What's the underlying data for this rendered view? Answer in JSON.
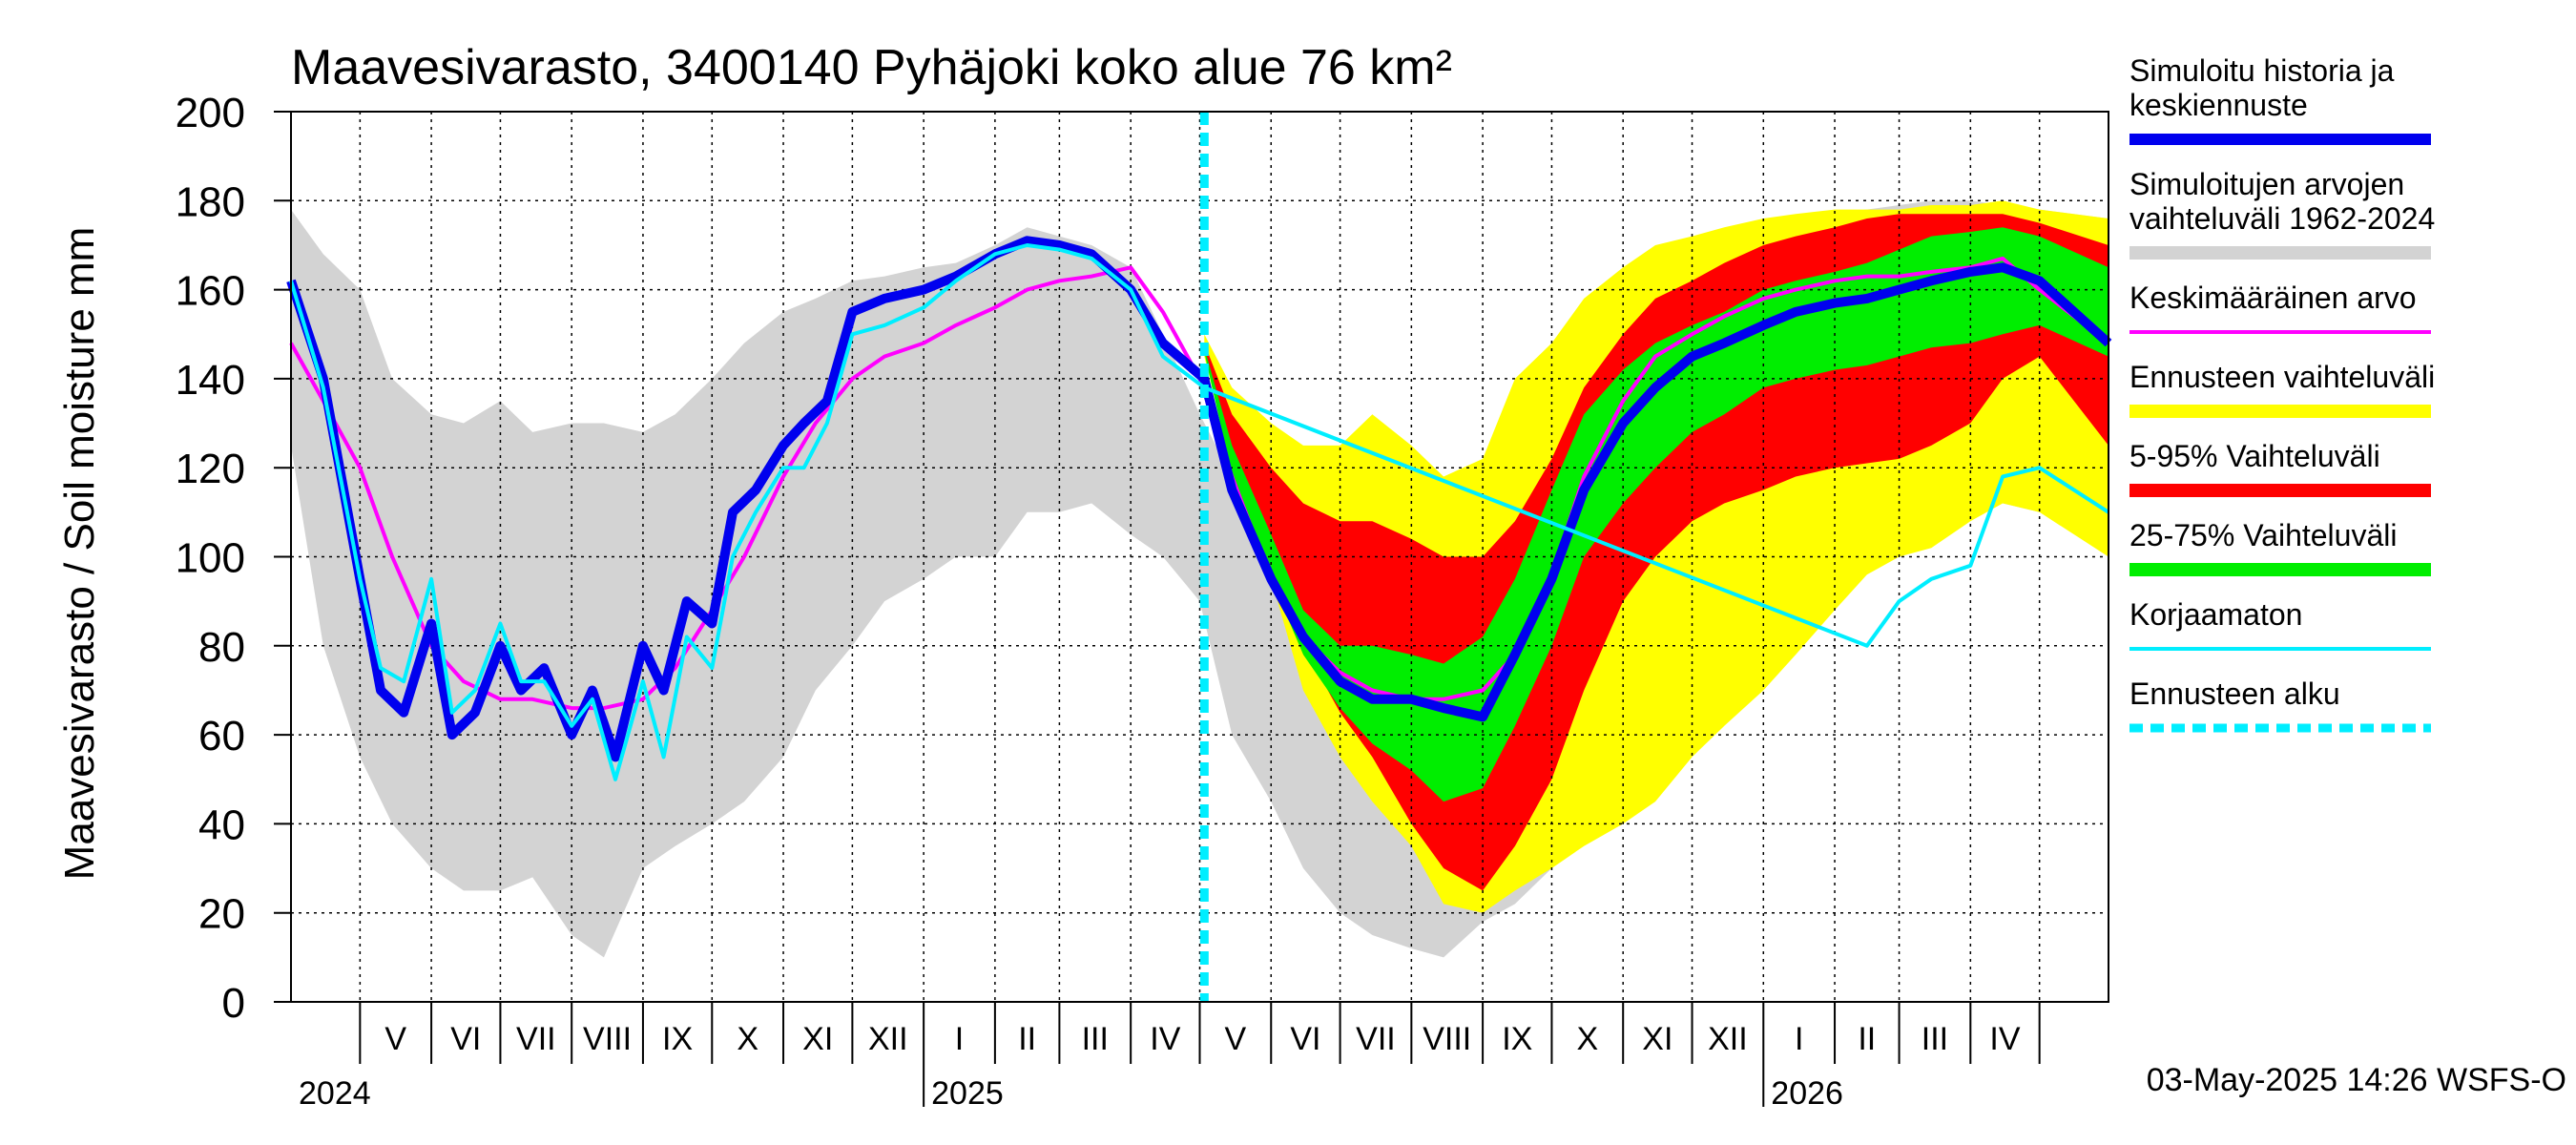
{
  "chart_data": {
    "type": "area",
    "title": "Maavesivarasto, 3400140 Pyhäjoki koko alue 76 km²",
    "ylabel": "Maavesivarasto / Soil moisture   mm",
    "ylim": [
      0,
      200
    ],
    "yticks": [
      "0",
      "20",
      "40",
      "60",
      "80",
      "100",
      "120",
      "140",
      "160",
      "180",
      "200"
    ],
    "x_start": "2024-04-01",
    "x_end": "2026-05-31",
    "forecast_start": "2025-05-03",
    "months": [
      "V",
      "VI",
      "VII",
      "VIII",
      "IX",
      "X",
      "XI",
      "XII",
      "I",
      "II",
      "III",
      "IV",
      "V",
      "VI",
      "VII",
      "VIII",
      "IX",
      "X",
      "XI",
      "XII",
      "I",
      "II",
      "III",
      "IV"
    ],
    "years": [
      "2024",
      "2025",
      "2026"
    ],
    "grid": true,
    "legend_position": "right",
    "legend": [
      {
        "label": "Simuloitu historia ja keskiennuste",
        "color": "#0000ee"
      },
      {
        "label": "Simuloitujen arvojen vaihteluväli 1962-2024",
        "color": "#d3d3d3"
      },
      {
        "label": "Keskimääräinen arvo",
        "color": "#ff00ff"
      },
      {
        "label": "Ennusteen vaihteluväli",
        "color": "#ffff00"
      },
      {
        "label": "5-95% Vaihteluväli",
        "color": "#ff0000"
      },
      {
        "label": "25-75% Vaihteluväli",
        "color": "#00ee00"
      },
      {
        "label": "Korjaamaton",
        "color": "#00eeff"
      },
      {
        "label": "Ennusteen alku",
        "color": "#00eeff"
      }
    ],
    "series": {
      "historical_range": {
        "dates": [
          "2024-04-01",
          "2024-04-15",
          "2024-05-01",
          "2024-05-15",
          "2024-06-01",
          "2024-06-15",
          "2024-07-01",
          "2024-07-15",
          "2024-08-01",
          "2024-08-15",
          "2024-09-01",
          "2024-09-15",
          "2024-10-01",
          "2024-10-15",
          "2024-11-01",
          "2024-11-15",
          "2024-12-01",
          "2024-12-15",
          "2025-01-01",
          "2025-01-15",
          "2025-02-01",
          "2025-02-15",
          "2025-03-01",
          "2025-03-15",
          "2025-04-01",
          "2025-04-15",
          "2025-05-01",
          "2025-05-15",
          "2025-06-01",
          "2025-06-15",
          "2025-07-01",
          "2025-07-15",
          "2025-08-01",
          "2025-08-15",
          "2025-09-01",
          "2025-09-15",
          "2025-10-01",
          "2025-10-15",
          "2025-11-01",
          "2025-11-15",
          "2025-12-01",
          "2025-12-15",
          "2026-01-01",
          "2026-01-15",
          "2026-02-01",
          "2026-02-15",
          "2026-03-01",
          "2026-03-15",
          "2026-04-01",
          "2026-04-15",
          "2026-05-01",
          "2026-05-31"
        ],
        "upper": [
          178,
          168,
          160,
          140,
          132,
          130,
          135,
          128,
          130,
          130,
          128,
          132,
          140,
          148,
          155,
          158,
          162,
          163,
          165,
          166,
          170,
          174,
          172,
          170,
          165,
          150,
          132,
          118,
          112,
          105,
          100,
          98,
          98,
          100,
          105,
          110,
          115,
          125,
          135,
          150,
          160,
          168,
          172,
          175,
          177,
          178,
          179,
          180,
          180,
          179,
          178,
          176
        ],
        "lower": [
          125,
          80,
          55,
          40,
          30,
          25,
          25,
          28,
          15,
          10,
          30,
          35,
          40,
          45,
          55,
          70,
          80,
          90,
          95,
          100,
          100,
          110,
          110,
          112,
          105,
          100,
          90,
          60,
          45,
          30,
          20,
          15,
          12,
          10,
          18,
          22,
          30,
          38,
          45,
          55,
          62,
          70,
          78,
          88,
          98,
          105,
          108,
          110,
          112,
          112,
          110,
          108
        ]
      },
      "forecast_range": {
        "dates": [
          "2025-05-03",
          "2025-05-15",
          "2025-06-01",
          "2025-06-15",
          "2025-07-01",
          "2025-07-15",
          "2025-08-01",
          "2025-08-15",
          "2025-09-01",
          "2025-09-15",
          "2025-10-01",
          "2025-10-15",
          "2025-11-01",
          "2025-11-15",
          "2025-12-01",
          "2025-12-15",
          "2026-01-01",
          "2026-01-15",
          "2026-02-01",
          "2026-02-15",
          "2026-03-01",
          "2026-03-15",
          "2026-04-01",
          "2026-04-15",
          "2026-05-01",
          "2026-05-31"
        ],
        "upper": [
          150,
          138,
          130,
          125,
          125,
          132,
          125,
          118,
          122,
          140,
          148,
          158,
          165,
          170,
          172,
          174,
          176,
          177,
          178,
          178,
          178,
          179,
          179,
          180,
          178,
          176
        ],
        "lower": [
          145,
          120,
          95,
          70,
          55,
          45,
          35,
          22,
          20,
          25,
          30,
          35,
          40,
          45,
          55,
          62,
          70,
          78,
          88,
          96,
          100,
          102,
          108,
          112,
          110,
          100
        ]
      },
      "p5_95": {
        "dates": [
          "2025-05-03",
          "2025-05-15",
          "2025-06-01",
          "2025-06-15",
          "2025-07-01",
          "2025-07-15",
          "2025-08-01",
          "2025-08-15",
          "2025-09-01",
          "2025-09-15",
          "2025-10-01",
          "2025-10-15",
          "2025-11-01",
          "2025-11-15",
          "2025-12-01",
          "2025-12-15",
          "2026-01-01",
          "2026-01-15",
          "2026-02-01",
          "2026-02-15",
          "2026-03-01",
          "2026-03-15",
          "2026-04-01",
          "2026-04-15",
          "2026-05-01",
          "2026-05-31"
        ],
        "upper": [
          148,
          132,
          120,
          112,
          108,
          108,
          104,
          100,
          100,
          108,
          122,
          138,
          150,
          158,
          162,
          166,
          170,
          172,
          174,
          176,
          177,
          177,
          177,
          177,
          175,
          170
        ],
        "lower": [
          146,
          122,
          100,
          80,
          65,
          55,
          40,
          30,
          25,
          35,
          50,
          70,
          90,
          100,
          108,
          112,
          115,
          118,
          120,
          121,
          122,
          125,
          130,
          140,
          145,
          125
        ]
      },
      "p25_75": {
        "dates": [
          "2025-05-03",
          "2025-05-15",
          "2025-06-01",
          "2025-06-15",
          "2025-07-01",
          "2025-07-15",
          "2025-08-01",
          "2025-08-15",
          "2025-09-01",
          "2025-09-15",
          "2025-10-01",
          "2025-10-15",
          "2025-11-01",
          "2025-11-15",
          "2025-12-01",
          "2025-12-15",
          "2026-01-01",
          "2026-01-15",
          "2026-02-01",
          "2026-02-15",
          "2026-03-01",
          "2026-03-15",
          "2026-04-01",
          "2026-04-15",
          "2026-05-01",
          "2026-05-31"
        ],
        "upper": [
          147,
          125,
          105,
          88,
          80,
          80,
          78,
          76,
          82,
          95,
          115,
          132,
          142,
          148,
          152,
          155,
          160,
          162,
          164,
          166,
          169,
          172,
          173,
          174,
          172,
          165
        ],
        "lower": [
          146,
          118,
          95,
          78,
          66,
          58,
          52,
          45,
          48,
          62,
          80,
          100,
          112,
          120,
          128,
          132,
          138,
          140,
          142,
          143,
          145,
          147,
          148,
          150,
          152,
          145
        ]
      },
      "simulated": {
        "dates": [
          "2024-04-01",
          "2024-04-15",
          "2024-05-01",
          "2024-05-10",
          "2024-05-20",
          "2024-06-01",
          "2024-06-10",
          "2024-06-20",
          "2024-07-01",
          "2024-07-10",
          "2024-07-20",
          "2024-08-01",
          "2024-08-10",
          "2024-08-20",
          "2024-09-01",
          "2024-09-10",
          "2024-09-20",
          "2024-10-01",
          "2024-10-10",
          "2024-10-20",
          "2024-11-01",
          "2024-11-10",
          "2024-11-20",
          "2024-12-01",
          "2024-12-15",
          "2025-01-01",
          "2025-01-15",
          "2025-02-01",
          "2025-02-15",
          "2025-03-01",
          "2025-03-15",
          "2025-04-01",
          "2025-04-15",
          "2025-05-03",
          "2025-05-15",
          "2025-06-01",
          "2025-06-15",
          "2025-07-01",
          "2025-07-15",
          "2025-08-01",
          "2025-08-15",
          "2025-09-01",
          "2025-09-15",
          "2025-10-01",
          "2025-10-15",
          "2025-11-01",
          "2025-11-15",
          "2025-12-01",
          "2025-12-15",
          "2026-01-01",
          "2026-01-15",
          "2026-02-01",
          "2026-02-15",
          "2026-03-01",
          "2026-03-15",
          "2026-04-01",
          "2026-04-15",
          "2026-05-01",
          "2026-05-31"
        ],
        "values": [
          162,
          140,
          95,
          70,
          65,
          85,
          60,
          65,
          80,
          70,
          75,
          60,
          70,
          55,
          80,
          70,
          90,
          85,
          110,
          115,
          125,
          130,
          135,
          155,
          158,
          160,
          163,
          168,
          171,
          170,
          168,
          160,
          148,
          140,
          115,
          95,
          82,
          72,
          68,
          68,
          66,
          64,
          78,
          95,
          115,
          130,
          138,
          145,
          148,
          152,
          155,
          157,
          158,
          160,
          162,
          164,
          165,
          162,
          148
        ]
      },
      "uncorrected": {
        "dates": [
          "2024-04-01",
          "2024-04-15",
          "2024-05-01",
          "2024-05-10",
          "2024-05-20",
          "2024-06-01",
          "2024-06-10",
          "2024-06-20",
          "2024-07-01",
          "2024-07-10",
          "2024-07-20",
          "2024-08-01",
          "2024-08-10",
          "2024-08-20",
          "2024-09-01",
          "2024-09-10",
          "2024-09-20",
          "2024-10-01",
          "2024-10-10",
          "2024-10-20",
          "2024-11-01",
          "2024-11-10",
          "2024-11-20",
          "2024-12-01",
          "2024-12-15",
          "2025-01-01",
          "2025-01-15",
          "2025-02-01",
          "2025-02-15",
          "2025-03-01",
          "2025-03-15",
          "2025-04-01",
          "2025-04-15",
          "2025-05-03",
          "2026-02-15",
          "2026-03-01",
          "2026-03-15",
          "2026-04-01",
          "2026-04-15",
          "2026-05-01",
          "2026-05-31"
        ],
        "values": [
          162,
          138,
          95,
          75,
          72,
          95,
          65,
          70,
          85,
          72,
          72,
          62,
          68,
          50,
          72,
          55,
          82,
          75,
          100,
          110,
          120,
          120,
          130,
          150,
          152,
          156,
          162,
          168,
          170,
          169,
          167,
          160,
          145,
          138,
          80,
          90,
          95,
          98,
          118,
          120,
          110
        ]
      },
      "mean": {
        "dates": [
          "2024-04-01",
          "2024-04-15",
          "2024-05-01",
          "2024-05-15",
          "2024-06-01",
          "2024-06-15",
          "2024-07-01",
          "2024-07-15",
          "2024-08-01",
          "2024-08-15",
          "2024-09-01",
          "2024-09-15",
          "2024-10-01",
          "2024-10-15",
          "2024-11-01",
          "2024-11-15",
          "2024-12-01",
          "2024-12-15",
          "2025-01-01",
          "2025-01-15",
          "2025-02-01",
          "2025-02-15",
          "2025-03-01",
          "2025-03-15",
          "2025-04-01",
          "2025-04-15",
          "2025-05-01",
          "2025-05-15",
          "2025-06-01",
          "2025-06-15",
          "2025-07-01",
          "2025-07-15",
          "2025-08-01",
          "2025-08-15",
          "2025-09-01",
          "2025-09-15",
          "2025-10-01",
          "2025-10-15",
          "2025-11-01",
          "2025-11-15",
          "2025-12-01",
          "2025-12-15",
          "2026-01-01",
          "2026-01-15",
          "2026-02-01",
          "2026-02-15",
          "2026-03-01",
          "2026-03-15",
          "2026-04-01",
          "2026-04-15",
          "2026-05-01",
          "2026-05-31"
        ],
        "values": [
          148,
          135,
          120,
          100,
          80,
          72,
          68,
          68,
          66,
          66,
          68,
          75,
          88,
          100,
          118,
          130,
          140,
          145,
          148,
          152,
          156,
          160,
          162,
          163,
          165,
          155,
          140,
          118,
          95,
          82,
          74,
          70,
          68,
          68,
          70,
          78,
          96,
          118,
          135,
          145,
          150,
          154,
          158,
          160,
          162,
          163,
          163,
          164,
          165,
          167,
          160,
          148
        ]
      }
    }
  },
  "footer": {
    "stamp": "03-May-2025 14:26 WSFS-O"
  }
}
